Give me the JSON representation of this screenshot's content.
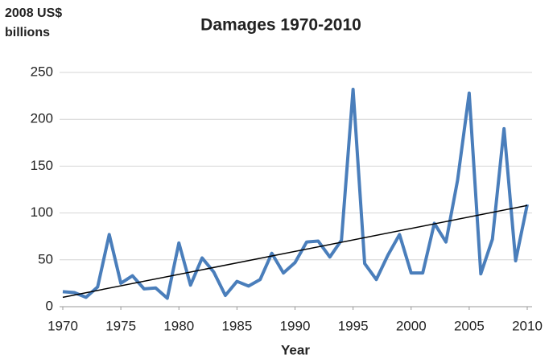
{
  "chart_data": {
    "type": "line",
    "title": "Damages 1970-2010",
    "ylabel": [
      "2008 US$",
      "billions"
    ],
    "xlabel": "Year",
    "x": [
      1970,
      1971,
      1972,
      1973,
      1974,
      1975,
      1976,
      1977,
      1978,
      1979,
      1980,
      1981,
      1982,
      1983,
      1984,
      1985,
      1986,
      1987,
      1988,
      1989,
      1990,
      1991,
      1992,
      1993,
      1994,
      1995,
      1996,
      1997,
      1998,
      1999,
      2000,
      2001,
      2002,
      2003,
      2004,
      2005,
      2006,
      2007,
      2008,
      2009,
      2010
    ],
    "series": [
      {
        "color": "#4a7ebb",
        "values": [
          16,
          15,
          10,
          21,
          77,
          25,
          33,
          19,
          20,
          9,
          68,
          23,
          52,
          37,
          12,
          27,
          22,
          29,
          57,
          36,
          47,
          69,
          70,
          53,
          71,
          232,
          46,
          29,
          55,
          77,
          36,
          36,
          89,
          69,
          135,
          228,
          35,
          72,
          190,
          49,
          109
        ]
      }
    ],
    "trendline": {
      "color": "#000000",
      "x": [
        1970,
        2010
      ],
      "values": [
        10,
        108
      ]
    },
    "xlim": [
      1970,
      2010
    ],
    "xticks": [
      1970,
      1975,
      1980,
      1985,
      1990,
      1995,
      2000,
      2005,
      2010
    ],
    "ylim": [
      0,
      250
    ],
    "yticks": [
      0,
      50,
      100,
      150,
      200,
      250
    ],
    "grid": true
  }
}
